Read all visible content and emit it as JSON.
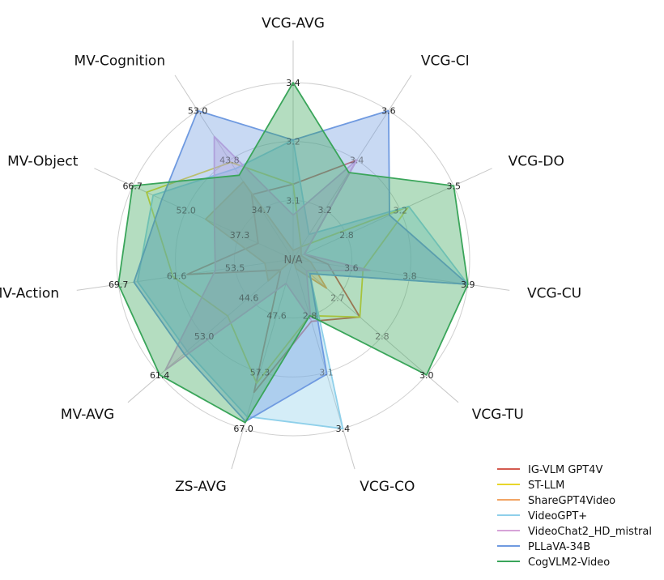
{
  "chart_data": {
    "type": "radar",
    "center_label": "N/A",
    "axes": [
      {
        "name": "VCG-AVG",
        "min": 3.0,
        "max": 3.4,
        "rings": [
          "3.1",
          "3.2",
          "3.4"
        ]
      },
      {
        "name": "VCG-CI",
        "min": 3.0,
        "max": 3.6,
        "rings": [
          "3.2",
          "3.4",
          "3.6"
        ]
      },
      {
        "name": "VCG-DO",
        "min": 2.5,
        "max": 3.5,
        "rings": [
          "2.8",
          "3.2",
          "3.5"
        ]
      },
      {
        "name": "VCG-CU",
        "min": 3.4,
        "max": 3.9,
        "rings": [
          "3.6",
          "3.8",
          "3.9"
        ]
      },
      {
        "name": "VCG-TU",
        "min": 2.6,
        "max": 3.0,
        "rings": [
          "2.7",
          "2.8",
          "3.0"
        ]
      },
      {
        "name": "VCG-CO",
        "min": 2.5,
        "max": 3.4,
        "rings": [
          "2.8",
          "3.1",
          "3.4"
        ]
      },
      {
        "name": "ZS-AVG",
        "min": 39.0,
        "max": 67.0,
        "rings": [
          "47.6",
          "57.3",
          "67.0"
        ]
      },
      {
        "name": "MV-AVG",
        "min": 40.0,
        "max": 61.4,
        "rings": [
          "44.6",
          "53.0",
          "61.4"
        ]
      },
      {
        "name": "MV-Action",
        "min": 45.0,
        "max": 69.7,
        "rings": [
          "53.5",
          "61.6",
          "69.7"
        ]
      },
      {
        "name": "MV-Object",
        "min": 30.0,
        "max": 66.7,
        "rings": [
          "37.3",
          "52.0",
          "66.7"
        ]
      },
      {
        "name": "MV-Cognition",
        "min": 30.0,
        "max": 53.0,
        "rings": [
          "34.7",
          "43.8",
          "53.0"
        ]
      }
    ],
    "series": [
      {
        "name": "IG-VLM GPT4V",
        "color": "#d45a4f",
        "fill": false,
        "values": [
          3.17,
          3.4,
          2.57,
          3.5,
          2.8,
          2.83,
          61.0,
          42.0,
          60.0,
          38.0,
          40.0
        ]
      },
      {
        "name": "ST-LLM",
        "color": "#e8d62b",
        "fill": false,
        "values": [
          3.17,
          3.05,
          3.22,
          3.6,
          2.8,
          2.8,
          59.5,
          50.5,
          62.0,
          63.5,
          45.0
        ]
      },
      {
        "name": "ShareGPT4Video",
        "color": "#f2a564",
        "fill": true,
        "values": [
          3.02,
          3.05,
          2.55,
          3.45,
          2.7,
          2.55,
          39.0,
          44.0,
          49.0,
          50.0,
          42.0
        ]
      },
      {
        "name": "VideoGPT+",
        "color": "#8fd0ea",
        "fill": true,
        "values": [
          3.27,
          3.1,
          3.22,
          3.9,
          2.65,
          3.4,
          65.0,
          57.0,
          67.0,
          62.0,
          44.0
        ]
      },
      {
        "name": "VideoChat2_HD_mistral",
        "color": "#d7a3d8",
        "fill": true,
        "values": [
          3.1,
          3.4,
          2.57,
          3.62,
          2.64,
          2.82,
          43.0,
          60.5,
          56.0,
          48.0,
          49.0
        ]
      },
      {
        "name": "PLLaVA-34B",
        "color": "#6f9ae0",
        "fill": true,
        "values": [
          3.27,
          3.6,
          3.1,
          3.9,
          2.65,
          3.11,
          65.8,
          57.5,
          67.5,
          60.0,
          53.0
        ]
      },
      {
        "name": "CogVLM2-Video",
        "color": "#3aa55a",
        "fill": true,
        "values": [
          3.4,
          3.35,
          3.5,
          3.9,
          3.0,
          2.8,
          66.0,
          61.4,
          69.7,
          66.7,
          43.0
        ]
      }
    ],
    "legend_position": "bottom-right",
    "grid": true
  }
}
